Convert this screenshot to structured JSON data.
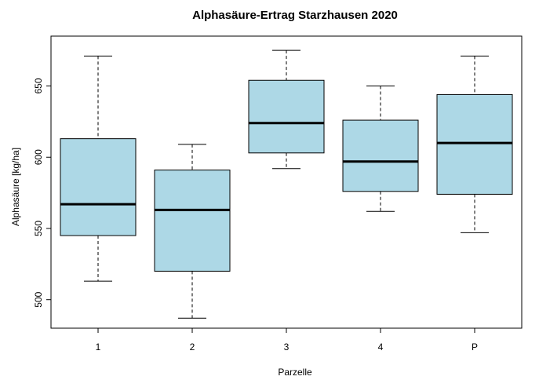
{
  "chart_data": {
    "type": "boxplot",
    "title": "Alphasäure-Ertrag Starzhausen 2020",
    "xlabel": "Parzelle",
    "ylabel": "Alphasäure [kg/ha]",
    "ylim": [
      480,
      685
    ],
    "yticks": [
      500,
      550,
      600,
      650
    ],
    "box_color": "#add8e6",
    "grid": false,
    "categories": [
      "1",
      "2",
      "3",
      "4",
      "P"
    ],
    "boxes": [
      {
        "category": "1",
        "min": 513,
        "q1": 545,
        "median": 567,
        "q3": 613,
        "max": 671
      },
      {
        "category": "2",
        "min": 487,
        "q1": 520,
        "median": 563,
        "q3": 591,
        "max": 609
      },
      {
        "category": "3",
        "min": 592,
        "q1": 603,
        "median": 624,
        "q3": 654,
        "max": 675
      },
      {
        "category": "4",
        "min": 562,
        "q1": 576,
        "median": 597,
        "q3": 626,
        "max": 650
      },
      {
        "category": "P",
        "min": 547,
        "q1": 574,
        "median": 610,
        "q3": 644,
        "max": 671
      }
    ]
  }
}
